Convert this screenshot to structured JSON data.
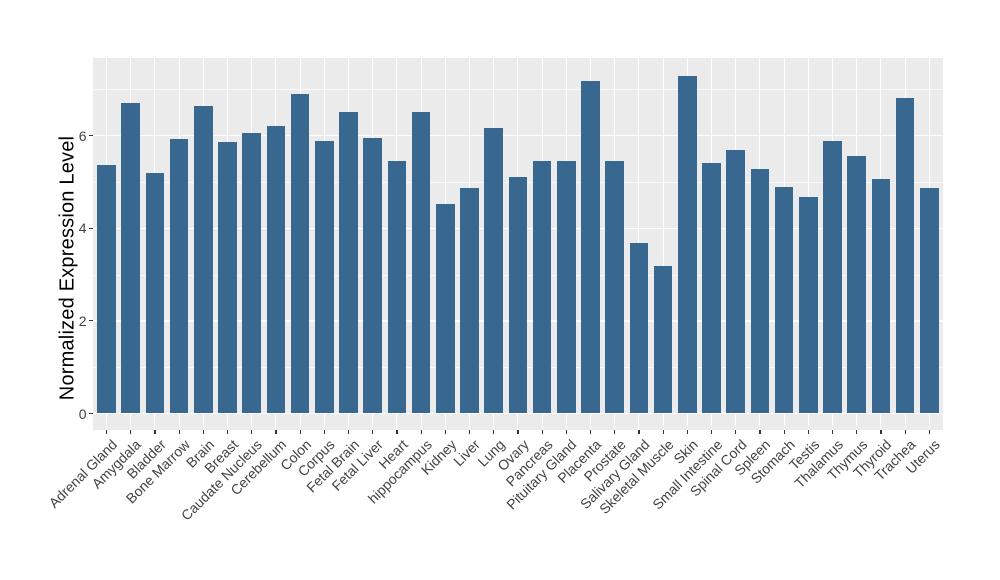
{
  "chart_data": {
    "type": "bar",
    "title": "",
    "xlabel": "",
    "ylabel": "Normalized Expression Level",
    "categories": [
      "Adrenal Gland",
      "Amygdala",
      "Bladder",
      "Bone Marrow",
      "Brain",
      "Breast",
      "Caudate Nucleus",
      "Cerebellum",
      "Colon",
      "Corpus",
      "Fetal Brain",
      "Fetal Liver",
      "Heart",
      "hippocampus",
      "Kidney",
      "Liver",
      "Lung",
      "Ovary",
      "Pancreas",
      "Pituitary Gland",
      "Placenta",
      "Prostate",
      "Salivary Gland",
      "Skeletal Muscle",
      "Skin",
      "Small Intestine",
      "Spinal Cord",
      "Spleen",
      "Stomach",
      "Testis",
      "Thalamus",
      "Thymus",
      "Thyroid",
      "Trachea",
      "Uterus"
    ],
    "values": [
      5.37,
      6.7,
      5.19,
      5.92,
      6.64,
      5.86,
      6.06,
      6.22,
      6.91,
      5.88,
      6.51,
      5.94,
      5.45,
      6.51,
      4.52,
      4.86,
      6.17,
      5.11,
      5.46,
      5.45,
      7.19,
      5.46,
      3.69,
      3.19,
      7.3,
      5.42,
      5.69,
      5.29,
      4.89,
      4.68,
      5.89,
      5.56,
      5.06,
      6.81,
      4.88
    ],
    "ylim": [
      0,
      7.68
    ],
    "yticks": [
      0,
      2,
      4,
      6
    ],
    "yticks_minor": [
      1,
      3,
      5,
      7
    ],
    "grid": "on",
    "legend": "none",
    "x_label_rotation_deg": 45,
    "colors": {
      "bar_fill": "#38678F",
      "panel_background": "#EBEBEB",
      "grid_major": "#FFFFFF",
      "grid_minor": "rgba(255,255,255,0.65)",
      "axis_text": "#424242",
      "axis_title": "#000000",
      "tick_mark": "#333333",
      "figure_background": "#FFFFFF"
    }
  }
}
